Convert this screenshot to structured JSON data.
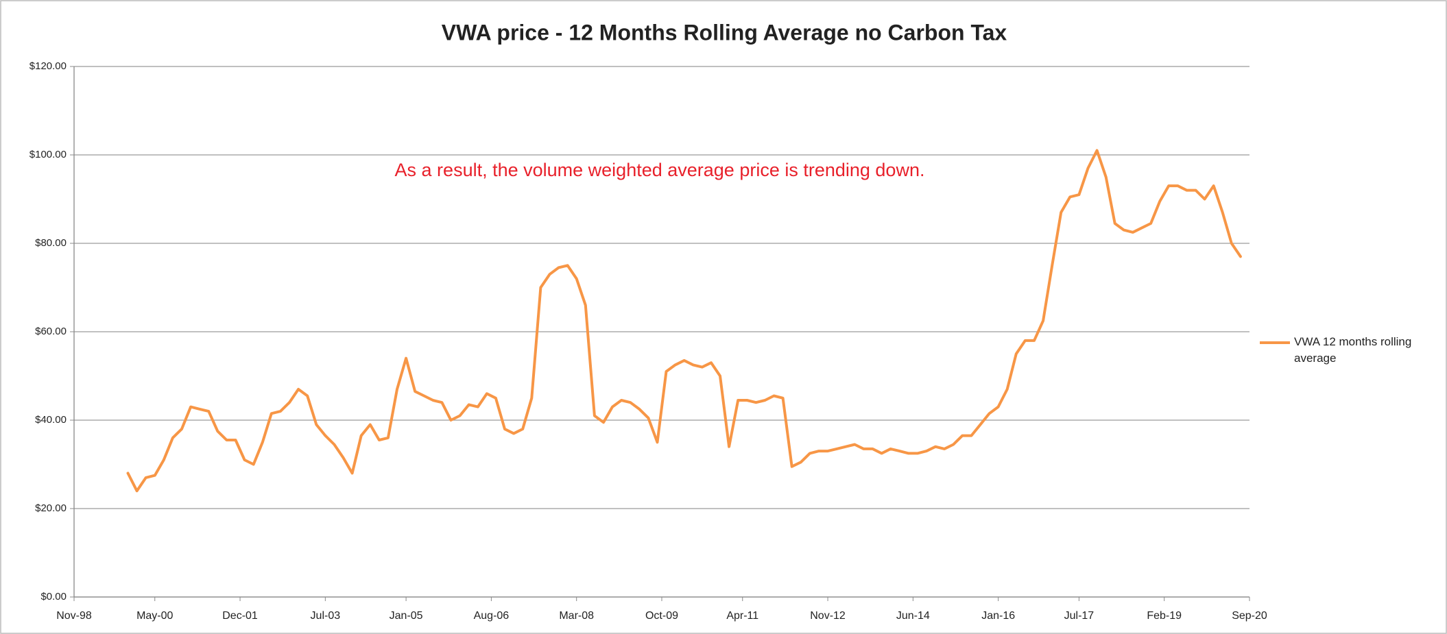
{
  "chart_data": {
    "type": "line",
    "title": "VWA price - 12 Months Rolling Average no Carbon Tax",
    "annotation": "As a result, the volume weighted average price is trending down.",
    "x": [
      "1999-11",
      "2000-01",
      "2000-03",
      "2000-05",
      "2000-07",
      "2000-09",
      "2000-11",
      "2001-01",
      "2001-03",
      "2001-05",
      "2001-07",
      "2001-09",
      "2001-11",
      "2002-01",
      "2002-03",
      "2002-05",
      "2002-07",
      "2002-09",
      "2002-11",
      "2003-01",
      "2003-03",
      "2003-05",
      "2003-07",
      "2003-09",
      "2003-11",
      "2004-01",
      "2004-03",
      "2004-05",
      "2004-07",
      "2004-09",
      "2004-11",
      "2005-01",
      "2005-03",
      "2005-05",
      "2005-07",
      "2005-09",
      "2005-11",
      "2006-01",
      "2006-03",
      "2006-05",
      "2006-07",
      "2006-09",
      "2006-11",
      "2007-01",
      "2007-03",
      "2007-05",
      "2007-07",
      "2007-09",
      "2007-11",
      "2008-01",
      "2008-03",
      "2008-05",
      "2008-07",
      "2008-09",
      "2008-11",
      "2009-01",
      "2009-03",
      "2009-05",
      "2009-07",
      "2009-09",
      "2009-11",
      "2010-01",
      "2010-03",
      "2010-05",
      "2010-07",
      "2010-09",
      "2010-11",
      "2011-01",
      "2011-03",
      "2011-05",
      "2011-07",
      "2011-09",
      "2011-11",
      "2012-01",
      "2012-03",
      "2012-05",
      "2012-07",
      "2012-09",
      "2012-11",
      "2013-01",
      "2013-03",
      "2013-05",
      "2013-07",
      "2013-09",
      "2013-11",
      "2014-01",
      "2014-03",
      "2014-05",
      "2014-07",
      "2014-09",
      "2014-11",
      "2015-01",
      "2015-03",
      "2015-05",
      "2015-07",
      "2015-09",
      "2015-11",
      "2016-01",
      "2016-03",
      "2016-05",
      "2016-07",
      "2016-09",
      "2016-11",
      "2017-01",
      "2017-03",
      "2017-05",
      "2017-07",
      "2017-09",
      "2017-11",
      "2018-01",
      "2018-03",
      "2018-05",
      "2018-07",
      "2018-09",
      "2018-11",
      "2019-01",
      "2019-03",
      "2019-05",
      "2019-07",
      "2019-09",
      "2019-11",
      "2020-01",
      "2020-03",
      "2020-05",
      "2020-07"
    ],
    "series": [
      {
        "name": "VWA 12 months rolling average",
        "color": "#f79646",
        "values": [
          28,
          24,
          27,
          27.5,
          31,
          36,
          38,
          43,
          42.5,
          42,
          37.5,
          35.5,
          35.5,
          31,
          30,
          35,
          41.5,
          42,
          44,
          47,
          45.5,
          39,
          36.5,
          34.5,
          31.5,
          28,
          36.5,
          39,
          35.5,
          36,
          47,
          54,
          46.5,
          45.5,
          44.5,
          44,
          40,
          41,
          43.5,
          43,
          46,
          45,
          38,
          37,
          38,
          45,
          70,
          73,
          74.5,
          75,
          72,
          66,
          41,
          39.5,
          43,
          44.5,
          44,
          42.5,
          40.5,
          35,
          51,
          52.5,
          53.5,
          52.5,
          52,
          53,
          50,
          34,
          44.5,
          44.5,
          44,
          44.5,
          45.5,
          45,
          29.5,
          30.5,
          32.5,
          33,
          33,
          33.5,
          34,
          34.5,
          33.5,
          33.5,
          32.5,
          33.5,
          33,
          32.5,
          32.5,
          33,
          34,
          33.5,
          34.5,
          36.5,
          36.5,
          39,
          41.5,
          43,
          47,
          55,
          58,
          58,
          62.5,
          75,
          87,
          90.5,
          91,
          97,
          101,
          95,
          84.5,
          83,
          82.5,
          83.5,
          84.5,
          89.5,
          93,
          93,
          92,
          92,
          90,
          93,
          87,
          80,
          77
        ]
      }
    ],
    "xlim": [
      "1998-11",
      "2020-09"
    ],
    "xticks": [
      {
        "value": "1998-11",
        "label": "Nov-98"
      },
      {
        "value": "2000-05",
        "label": "May-00"
      },
      {
        "value": "2001-12",
        "label": "Dec-01"
      },
      {
        "value": "2003-07",
        "label": "Jul-03"
      },
      {
        "value": "2005-01",
        "label": "Jan-05"
      },
      {
        "value": "2006-08",
        "label": "Aug-06"
      },
      {
        "value": "2008-03",
        "label": "Mar-08"
      },
      {
        "value": "2009-10",
        "label": "Oct-09"
      },
      {
        "value": "2011-04",
        "label": "Apr-11"
      },
      {
        "value": "2012-11",
        "label": "Nov-12"
      },
      {
        "value": "2014-06",
        "label": "Jun-14"
      },
      {
        "value": "2016-01",
        "label": "Jan-16"
      },
      {
        "value": "2017-07",
        "label": "Jul-17"
      },
      {
        "value": "2019-02",
        "label": "Feb-19"
      },
      {
        "value": "2020-09",
        "label": "Sep-20"
      }
    ],
    "ylim": [
      0,
      120
    ],
    "yticks": [
      {
        "value": 0,
        "label": "$0.00"
      },
      {
        "value": 20,
        "label": "$20.00"
      },
      {
        "value": 40,
        "label": "$40.00"
      },
      {
        "value": 60,
        "label": "$60.00"
      },
      {
        "value": 80,
        "label": "$80.00"
      },
      {
        "value": 100,
        "label": "$100.00"
      },
      {
        "value": 120,
        "label": "$120.00"
      }
    ],
    "grid": true,
    "legend": "right"
  }
}
